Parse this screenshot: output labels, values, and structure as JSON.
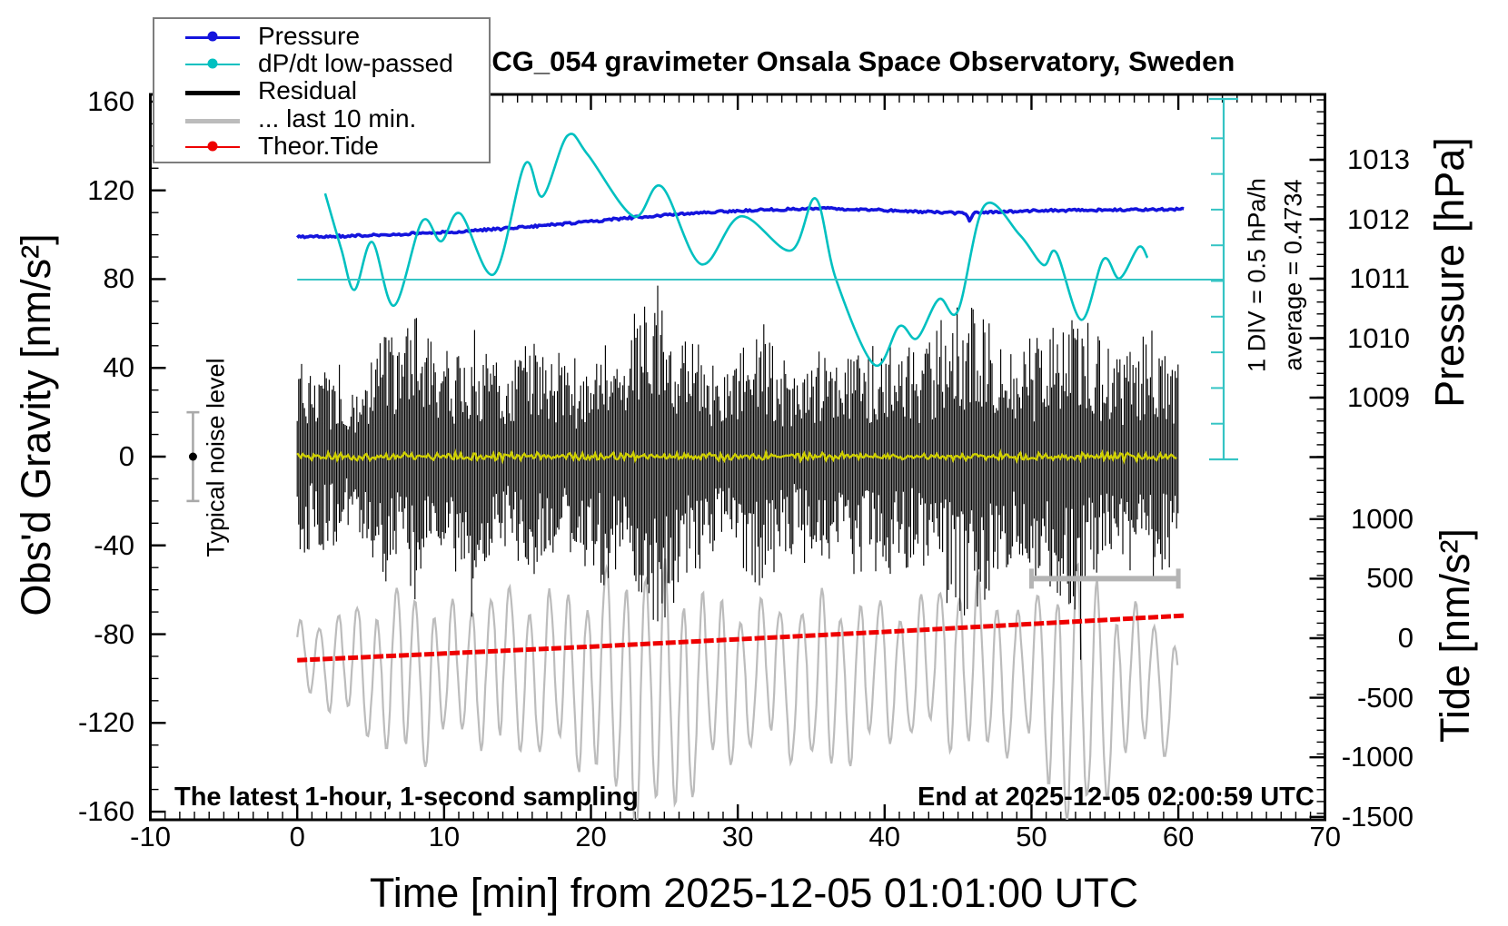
{
  "title": "SCG_054 gravimeter Onsala Space Observatory, Sweden",
  "legend": {
    "items": [
      {
        "label": "Pressure",
        "color": "#1414dd",
        "marker": "dot",
        "line_width": 3
      },
      {
        "label": "dP/dt low-passed",
        "color": "#00c0c0",
        "marker": "dot",
        "line_width": 2
      },
      {
        "label": "Residual",
        "color": "#000000",
        "marker": "none",
        "line_width": 5
      },
      {
        "label": "... last 10 min.",
        "color": "#bcbcbc",
        "marker": "none",
        "line_width": 5
      },
      {
        "label": "Theor.Tide",
        "color": "#ee0000",
        "marker": "dot",
        "line_width": 2
      }
    ]
  },
  "axes": {
    "x": {
      "title": "Time [min] from 2025-12-05 01:01:00 UTC",
      "tick_labels": [
        "-10",
        "0",
        "10",
        "20",
        "30",
        "40",
        "50",
        "60",
        "70"
      ],
      "tick_values": [
        -10,
        0,
        10,
        20,
        30,
        40,
        50,
        60,
        70
      ],
      "minor_step": 1,
      "range": [
        -10,
        70
      ]
    },
    "gravity": {
      "title": "Obs'd Gravity [nm/s²]",
      "tick_labels": [
        "160",
        "120",
        "80",
        "40",
        "0",
        "-40",
        "-80",
        "-120",
        "-160"
      ],
      "tick_values": [
        160,
        120,
        80,
        40,
        0,
        -40,
        -80,
        -120,
        -160
      ],
      "minor_step": 10,
      "range": [
        -163.5,
        163.5
      ]
    },
    "pressure": {
      "title": "Pressure [hPa]",
      "tick_labels": [
        "1013",
        "1012",
        "1011",
        "1010",
        "1009"
      ],
      "tick_values": [
        1013,
        1012,
        1011,
        1010,
        1009
      ],
      "minor_step": 0.2
    },
    "tide": {
      "title": "Tide [nm/s²]",
      "tick_labels": [
        "1000",
        "500",
        "0",
        "-500",
        "-1000",
        "-1500"
      ],
      "tick_values": [
        1000,
        500,
        0,
        -500,
        -1000,
        -1500
      ],
      "minor_step": 100
    }
  },
  "annotations": {
    "sampling_note": "The latest 1-hour, 1-second sampling",
    "end_note": "End at 2025-12-05 02:00:59 UTC",
    "div_note": "1 DIV = 0.5 hPa/h",
    "average_note": "average = 0.4734",
    "noise_label": "Typical noise level"
  },
  "chart_data": {
    "type": "line",
    "title": "SCG_054 gravimeter Onsala Space Observatory, Sweden",
    "xlabel": "Time [min] from 2025-12-05 01:01:00 UTC",
    "x_range_min": [
      -10,
      70
    ],
    "grid": false,
    "legend_position": "top-left",
    "dpdt_scalebar": {
      "divisions": 10,
      "div_hpa_per_h": 0.5,
      "average": 0.4734
    },
    "markers": {
      "typical_noise": {
        "t": -7.1,
        "gravity": 0,
        "error": 20
      },
      "last10_window": {
        "t_start": 50,
        "t_end": 60,
        "tide": 500
      }
    },
    "series": [
      {
        "name": "Pressure",
        "axis": "pressure_hPa",
        "color": "#1414dd",
        "x": [
          0,
          2,
          4,
          6,
          8,
          10,
          12,
          14,
          16,
          18,
          20,
          22,
          24,
          26,
          28,
          30,
          32,
          34,
          36,
          38,
          40,
          42,
          44,
          45.5,
          45.8,
          46.1,
          48,
          50,
          52,
          54,
          56,
          58,
          60
        ],
        "y": [
          1011.7,
          1011.71,
          1011.72,
          1011.74,
          1011.76,
          1011.78,
          1011.81,
          1011.84,
          1011.88,
          1011.92,
          1011.96,
          1012.01,
          1012.05,
          1012.09,
          1012.12,
          1012.14,
          1012.16,
          1012.17,
          1012.18,
          1012.17,
          1012.15,
          1012.13,
          1012.11,
          1012.1,
          1011.96,
          1012.1,
          1012.13,
          1012.14,
          1012.15,
          1012.15,
          1012.16,
          1012.16,
          1012.17
        ]
      },
      {
        "name": "dP/dt low-passed",
        "axis": "hPa_per_h",
        "color": "#00c0c0",
        "average": 0.4734,
        "x": [
          1.9,
          3.0,
          3.9,
          5.1,
          6.6,
          8.5,
          9.8,
          11.1,
          13.4,
          15.5,
          16.7,
          18.4,
          19.8,
          22.9,
          24.8,
          27.5,
          30.2,
          33.6,
          35.3,
          36.7,
          39.3,
          41.0,
          42.2,
          43.7,
          45.0,
          46.8,
          49.2,
          50.8,
          51.7,
          53.4,
          54.9,
          56.0,
          57.3,
          57.9
        ],
        "y": [
          1.68,
          0.9,
          0.33,
          1.0,
          0.11,
          1.29,
          1.01,
          1.4,
          0.55,
          2.09,
          1.64,
          2.49,
          2.22,
          1.36,
          1.78,
          0.69,
          1.36,
          0.88,
          1.61,
          0.47,
          -0.72,
          -0.18,
          -0.35,
          0.2,
          0.04,
          1.51,
          1.1,
          0.68,
          0.85,
          -0.09,
          0.76,
          0.49,
          0.93,
          0.78
        ]
      },
      {
        "name": "Residual",
        "axis": "gravity_nm_s2",
        "color": "#000000",
        "representation": "minmax_envelope_1s_sampling",
        "mean": 0,
        "x": [
          0,
          1,
          2,
          3,
          4,
          5,
          6,
          7,
          8,
          9,
          10,
          11,
          12,
          13,
          14,
          15,
          16,
          17,
          18,
          19,
          20,
          21,
          22,
          23,
          24,
          25,
          26,
          27,
          28,
          29,
          30,
          31,
          32,
          33,
          34,
          35,
          36,
          37,
          38,
          39,
          40,
          41,
          42,
          43,
          44,
          45,
          46,
          47,
          48,
          49,
          50,
          51,
          52,
          53,
          54,
          55,
          56,
          57,
          58,
          59,
          60
        ],
        "amplitude": [
          52,
          38,
          42,
          34,
          30,
          42,
          55,
          48,
          68,
          50,
          44,
          52,
          58,
          44,
          38,
          46,
          52,
          40,
          46,
          42,
          52,
          56,
          46,
          62,
          72,
          78,
          58,
          52,
          44,
          40,
          48,
          54,
          58,
          46,
          40,
          52,
          46,
          42,
          52,
          46,
          56,
          50,
          46,
          52,
          62,
          66,
          72,
          62,
          50,
          46,
          52,
          56,
          62,
          66,
          58,
          50,
          46,
          52,
          56,
          50,
          44
        ]
      },
      {
        "name": "Residual low-passed",
        "axis": "gravity_nm_s2",
        "color": "#d0d000",
        "representation": "smooth_center_line",
        "mean": 0,
        "amplitude": 2
      },
      {
        "name": "... last 10 min.",
        "axis": "tide_nm_s2",
        "color": "#bcbcbc",
        "representation": "oscillation_envelope",
        "x": [
          0,
          2,
          4,
          6,
          8,
          10,
          12,
          14,
          16,
          18,
          20,
          22,
          24,
          26,
          28,
          30,
          32,
          34,
          36,
          38,
          40,
          42,
          44,
          46,
          48,
          50,
          52,
          54,
          56,
          58,
          60
        ],
        "center": [
          -150,
          -200,
          -250,
          -300,
          -350,
          -300,
          -250,
          -300,
          -280,
          -300,
          -350,
          -450,
          -500,
          -450,
          -400,
          -350,
          -300,
          -350,
          -400,
          -350,
          -300,
          -250,
          -200,
          -250,
          -300,
          -350,
          -450,
          -500,
          -400,
          -350,
          -500
        ],
        "amplitude": [
          250,
          350,
          450,
          600,
          700,
          500,
          550,
          650,
          600,
          650,
          700,
          950,
          1050,
          900,
          700,
          600,
          550,
          600,
          700,
          600,
          550,
          500,
          600,
          700,
          600,
          550,
          950,
          1050,
          600,
          550,
          420
        ]
      },
      {
        "name": "Theor.Tide",
        "axis": "tide_nm_s2",
        "color": "#ee0000",
        "x": [
          0,
          10,
          20,
          30,
          40,
          50,
          60
        ],
        "y": [
          -185,
          -128,
          -70,
          -8,
          55,
          122,
          190
        ]
      }
    ]
  }
}
